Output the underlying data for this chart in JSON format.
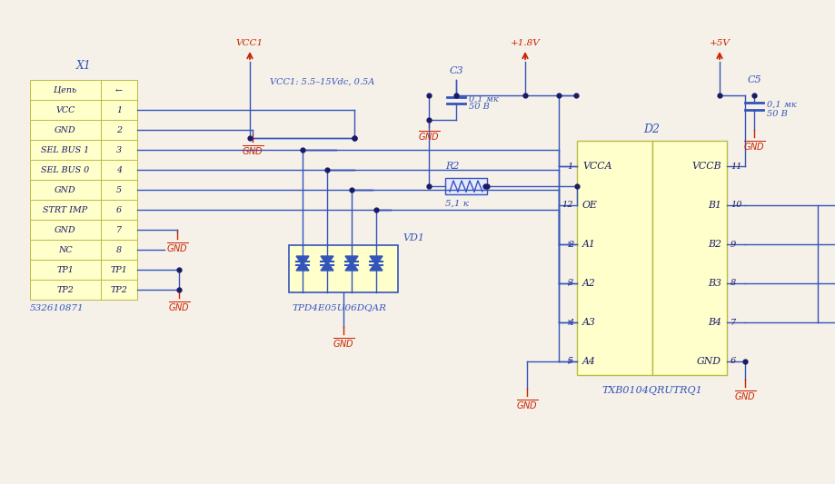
{
  "bg_color": "#f5f0e8",
  "line_color": "#3355bb",
  "red_color": "#cc2200",
  "dark_color": "#1a1a66",
  "yellow_fill": "#ffffcc",
  "yellow_edge": "#bbbb44",
  "x1_label": "X1",
  "x1_rows": [
    "Цепь",
    "VCC",
    "GND",
    "SEL BUS 1",
    "SEL BUS 0",
    "GND",
    "STRT IMP",
    "GND",
    "NC",
    "TP1",
    "TP2"
  ],
  "x1_nums": [
    "←",
    "1",
    "2",
    "3",
    "4",
    "5",
    "6",
    "7",
    "8",
    "TP1",
    "TP2"
  ],
  "x1_part": "532610871",
  "vd1_label": "VD1",
  "vd1_part": "TPD4E05U06DQAR",
  "c3_label": "C3",
  "c3_val1": "0,1 мк",
  "c3_val2": "50 В",
  "r2_label": "R2",
  "r2_val": "5,1 к",
  "d2_label": "D2",
  "d2_part": "TXB0104QRUTRQ1",
  "d2_left_pins": [
    "VCCA",
    "OE",
    "A1",
    "A2",
    "A3",
    "A4"
  ],
  "d2_right_pins": [
    "VCCB",
    "B1",
    "B2",
    "B3",
    "B4",
    "GND"
  ],
  "d2_left_nums": [
    "1",
    "12",
    "2",
    "3",
    "4",
    "5"
  ],
  "d2_right_nums": [
    "11",
    "10",
    "9",
    "8",
    "7",
    "6"
  ],
  "c5_label": "C5",
  "c5_val1": "0,1 мк",
  "c5_val2": "50 В",
  "vcc1_label": "VCC1",
  "vcc1_note": "VCC1: 5.5–15Vdc, 0.5A",
  "v18_label": "+1.8V",
  "v5_label": "+5V",
  "gnd_label": "GND"
}
